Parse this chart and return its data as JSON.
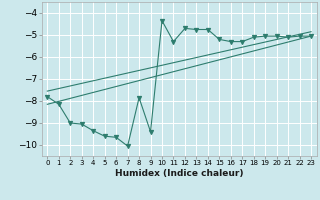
{
  "xlabel": "Humidex (Indice chaleur)",
  "bg_color": "#cce8ec",
  "grid_color": "#ffffff",
  "line_color": "#2e7d6e",
  "xlim": [
    -0.5,
    23.5
  ],
  "ylim": [
    -10.5,
    -3.5
  ],
  "yticks": [
    -10,
    -9,
    -8,
    -7,
    -6,
    -5,
    -4
  ],
  "xticks": [
    0,
    1,
    2,
    3,
    4,
    5,
    6,
    7,
    8,
    9,
    10,
    11,
    12,
    13,
    14,
    15,
    16,
    17,
    18,
    19,
    20,
    21,
    22,
    23
  ],
  "data_x": [
    0,
    1,
    2,
    3,
    4,
    5,
    6,
    7,
    8,
    9,
    10,
    11,
    12,
    13,
    14,
    15,
    16,
    17,
    18,
    19,
    20,
    21,
    22,
    23
  ],
  "data_y": [
    -7.8,
    -8.15,
    -9.0,
    -9.05,
    -9.35,
    -9.6,
    -9.65,
    -10.05,
    -7.85,
    -9.4,
    -4.35,
    -5.3,
    -4.7,
    -4.75,
    -4.75,
    -5.2,
    -5.3,
    -5.3,
    -5.1,
    -5.05,
    -5.05,
    -5.1,
    -5.05,
    -5.05
  ],
  "trend1_x": [
    0,
    23
  ],
  "trend1_y": [
    -8.15,
    -5.05
  ],
  "trend2_x": [
    0,
    23
  ],
  "trend2_y": [
    -7.55,
    -4.85
  ]
}
